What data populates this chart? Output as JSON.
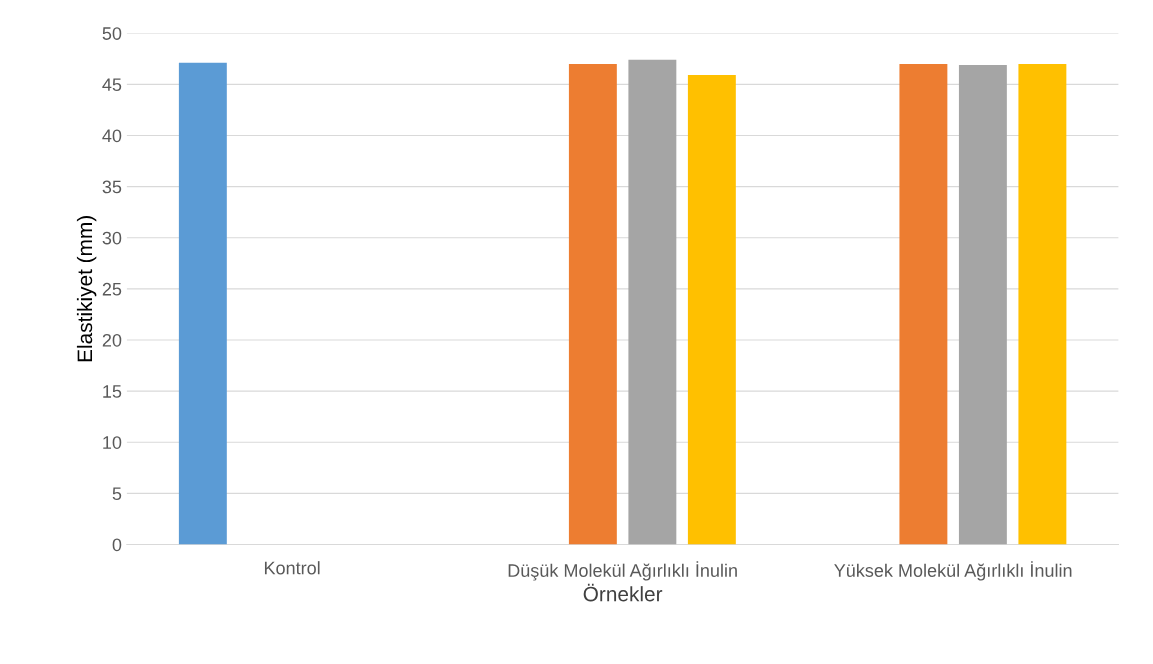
{
  "chart_data": {
    "type": "bar",
    "xlabel": "Örnekler",
    "ylabel": "Elastikiyet (mm)",
    "categories": [
      "Kontrol",
      "Düşük Molekül Ağırlıklı İnulin",
      "Yüksek Molekül Ağırlıklı İnulin"
    ],
    "series": [
      {
        "color": "#5b9bd5",
        "values": [
          47.1,
          null,
          null
        ]
      },
      {
        "color": "#ed7d31",
        "values": [
          null,
          47.0,
          47.0
        ]
      },
      {
        "color": "#a5a5a5",
        "values": [
          null,
          47.4,
          46.9
        ]
      },
      {
        "color": "#ffc000",
        "values": [
          null,
          45.9,
          47.0
        ]
      }
    ],
    "ylim": [
      0,
      50
    ],
    "yticks": [
      0,
      5,
      10,
      15,
      20,
      25,
      30,
      35,
      40,
      45,
      50
    ],
    "grid": "y",
    "legend": false
  }
}
